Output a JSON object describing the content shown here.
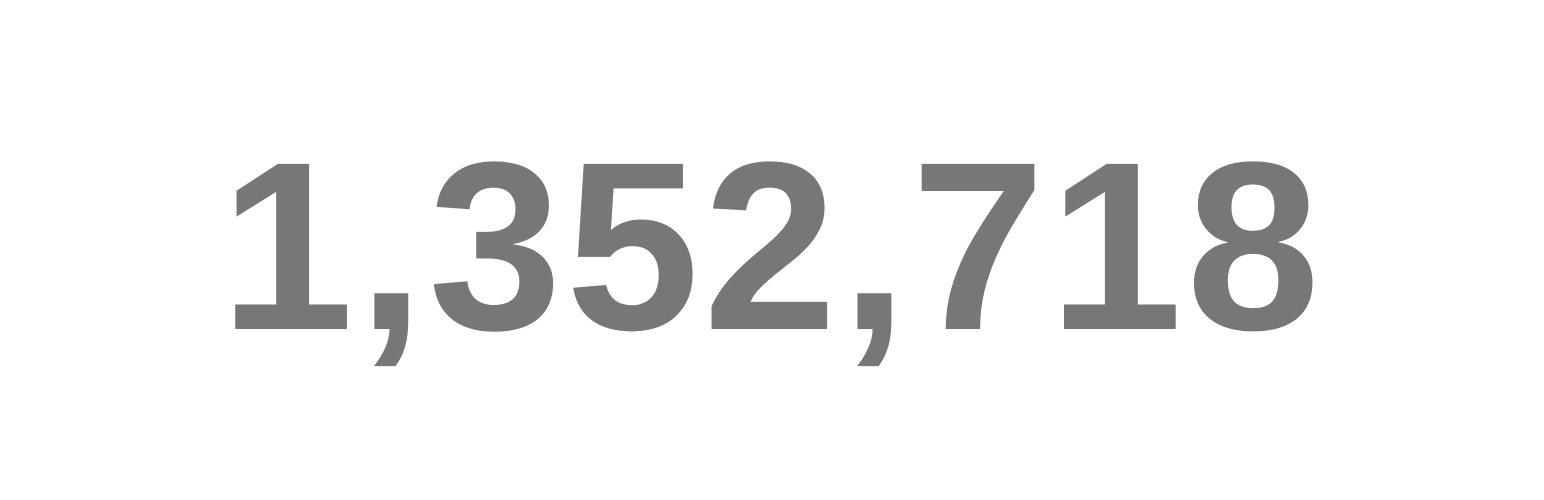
{
  "counter": {
    "value": "1,352,718",
    "color": "#777777",
    "background": "#ffffff"
  }
}
